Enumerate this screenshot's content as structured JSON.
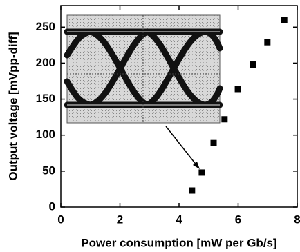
{
  "chart_data": {
    "type": "scatter",
    "x_label": "Power consumption [mW per Gb/s]",
    "y_label": "Output voltage [mVpp-diff]",
    "series": [
      {
        "color": "#000000",
        "x": [
          4.44,
          4.77,
          5.17,
          5.54,
          5.99,
          6.5,
          6.99,
          7.56
        ],
        "values": [
          23,
          48,
          89,
          122,
          164,
          198,
          229,
          260
        ]
      }
    ],
    "xlim": [
      0,
      8
    ],
    "xticks": [
      0,
      2,
      4,
      6,
      8
    ],
    "ylim": [
      0,
      280
    ],
    "yticks": [
      0,
      50,
      100,
      150,
      200,
      250
    ]
  }
}
